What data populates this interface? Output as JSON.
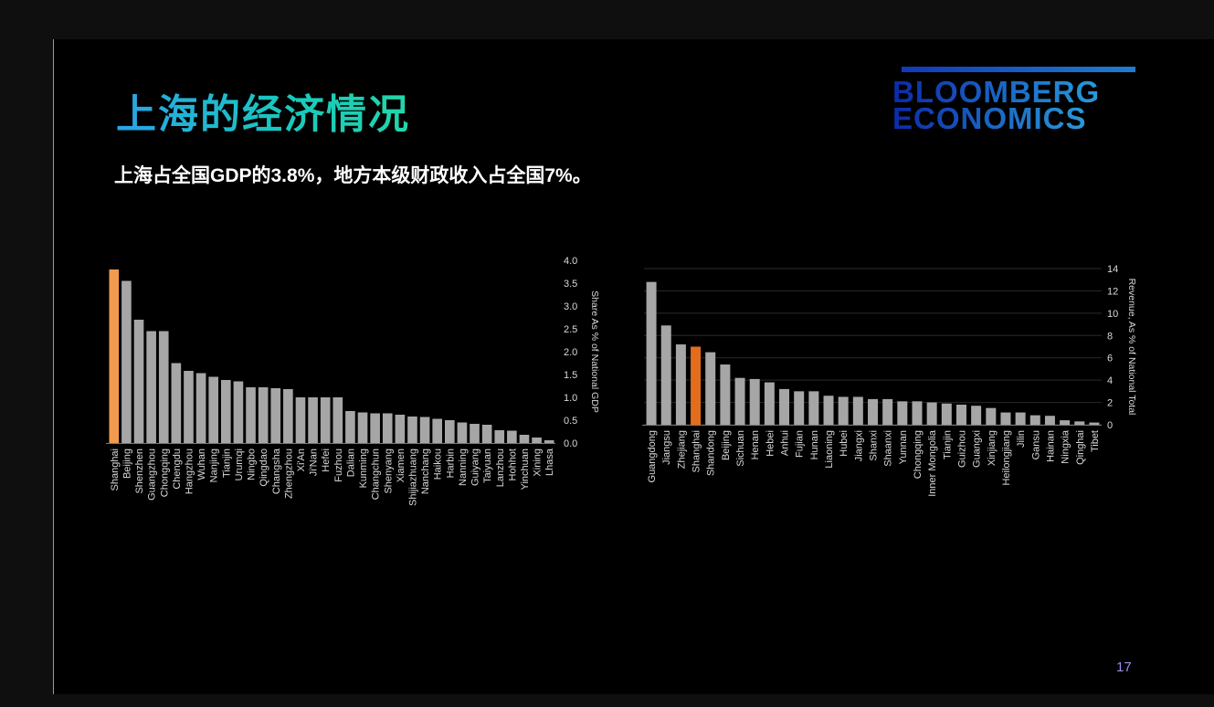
{
  "slide": {
    "title": "上海的经济情况",
    "subtitle": "上海占全国GDP的3.8%，地方本级财政收入占全国7%。",
    "logo_line1": "BLOOMBERG",
    "logo_line2": "ECONOMICS",
    "page_number": "17"
  },
  "colors": {
    "bar_default": "#a6a6a6",
    "highlight_gdp": "#f29a4e",
    "highlight_revenue": "#e36d1d",
    "axis_text": "#d9d9d9",
    "grid": "#2a2a2a"
  },
  "chart_data": [
    {
      "type": "bar",
      "title": "",
      "xlabel": "",
      "ylabel": "Share As % of National GDP",
      "ylim": [
        0,
        4
      ],
      "yticks": [
        "0.0",
        "0.5",
        "1.0",
        "1.5",
        "2.0",
        "2.5",
        "3.0",
        "3.5",
        "4.0"
      ],
      "highlight": "Shanghai",
      "grid": false,
      "categories": [
        "Shanghai",
        "Beijing",
        "Shenzhen",
        "Guangzhou",
        "Chongqing",
        "Chengdu",
        "Hangzhou",
        "Wuhan",
        "Nanjing",
        "Tianjin",
        "Urumqi",
        "Ningbo",
        "Qingdao",
        "Changsha",
        "Zhengzhou",
        "Xi'An",
        "Ji'Nan",
        "Hefei",
        "Fuzhou",
        "Dalian",
        "Kunming",
        "Changchun",
        "Shenyang",
        "Xiamen",
        "Shijiazhuang",
        "Nanchang",
        "Haikou",
        "Harbin",
        "Nanning",
        "Guiyang",
        "Taiyuan",
        "Lanzhou",
        "Hohhot",
        "Yinchuan",
        "Xining",
        "Lhasa"
      ],
      "values": [
        3.8,
        3.55,
        2.7,
        2.45,
        2.45,
        1.75,
        1.58,
        1.53,
        1.45,
        1.38,
        1.35,
        1.22,
        1.22,
        1.2,
        1.18,
        1.0,
        1.0,
        1.0,
        1.0,
        0.7,
        0.67,
        0.65,
        0.65,
        0.62,
        0.58,
        0.57,
        0.53,
        0.5,
        0.45,
        0.42,
        0.4,
        0.28,
        0.27,
        0.18,
        0.12,
        0.06
      ]
    },
    {
      "type": "bar",
      "title": "",
      "xlabel": "",
      "ylabel": "Revenue, As % of National Total",
      "ylim": [
        0,
        14
      ],
      "yticks": [
        "0",
        "2",
        "4",
        "6",
        "8",
        "10",
        "12",
        "14"
      ],
      "highlight": "Shanghai",
      "grid": true,
      "categories": [
        "Guangdong",
        "Jiangsu",
        "Zhejiang",
        "Shanghai",
        "Shandong",
        "Beijing",
        "Sichuan",
        "Henan",
        "Hebei",
        "Anhui",
        "Fujian",
        "Hunan",
        "Liaoning",
        "Hubei",
        "Jiangxi",
        "Shanxi",
        "Shaanxi",
        "Yunnan",
        "Chongqing",
        "Inner Mongolia",
        "Tianjin",
        "Guizhou",
        "Guangxi",
        "Xinjiang",
        "Heilongjiang",
        "Jilin",
        "Gansu",
        "Hainan",
        "Ningxia",
        "Qinghai",
        "Tibet"
      ],
      "values": [
        12.8,
        8.9,
        7.2,
        7.0,
        6.5,
        5.4,
        4.2,
        4.1,
        3.8,
        3.2,
        3.0,
        3.0,
        2.6,
        2.5,
        2.5,
        2.3,
        2.3,
        2.1,
        2.1,
        2.0,
        1.9,
        1.8,
        1.7,
        1.5,
        1.1,
        1.1,
        0.85,
        0.8,
        0.4,
        0.3,
        0.2
      ]
    }
  ]
}
